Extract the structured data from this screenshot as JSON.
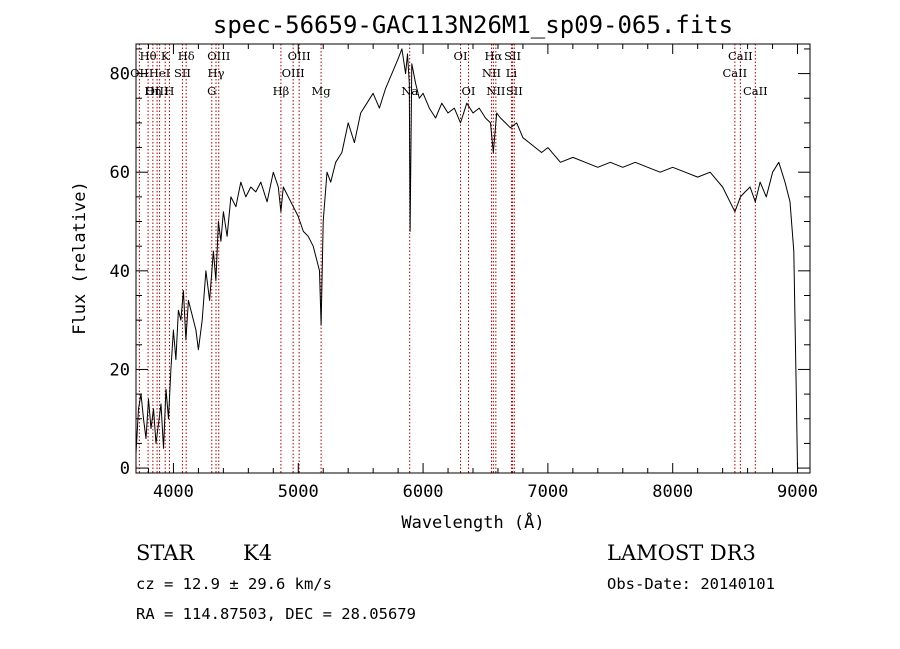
{
  "chart_data": {
    "type": "line",
    "title": "spec-56659-GAC113N26M1_sp09-065.fits",
    "xlabel": "Wavelength (Å)",
    "ylabel": "Flux (relative)",
    "xlim": [
      3700,
      9100
    ],
    "ylim": [
      -1,
      86
    ],
    "x_ticks": [
      4000,
      5000,
      6000,
      7000,
      8000,
      9000
    ],
    "y_ticks": [
      0,
      20,
      40,
      60,
      80
    ],
    "grid": false,
    "series": [
      {
        "x": [
          3700,
          3720,
          3740,
          3760,
          3780,
          3800,
          3820,
          3840,
          3860,
          3880,
          3900,
          3920,
          3940,
          3960,
          3980,
          4000,
          4020,
          4040,
          4060,
          4080,
          4100,
          4120,
          4150,
          4180,
          4200,
          4230,
          4260,
          4290,
          4320,
          4340,
          4360,
          4380,
          4400,
          4430,
          4460,
          4500,
          4540,
          4580,
          4620,
          4660,
          4700,
          4750,
          4800,
          4840,
          4861,
          4880,
          4920,
          4960,
          5000,
          5040,
          5080,
          5120,
          5150,
          5170,
          5183,
          5200,
          5230,
          5260,
          5300,
          5350,
          5400,
          5450,
          5500,
          5550,
          5600,
          5650,
          5700,
          5750,
          5800,
          5830,
          5860,
          5875,
          5890,
          5896,
          5910,
          5940,
          5970,
          6000,
          6050,
          6100,
          6150,
          6200,
          6250,
          6300,
          6350,
          6400,
          6450,
          6500,
          6540,
          6563,
          6590,
          6620,
          6660,
          6700,
          6750,
          6800,
          6850,
          6900,
          6950,
          7000,
          7100,
          7200,
          7300,
          7400,
          7500,
          7600,
          7700,
          7800,
          7900,
          8000,
          8100,
          8200,
          8300,
          8400,
          8498,
          8542,
          8580,
          8620,
          8662,
          8700,
          8750,
          8800,
          8850,
          8900,
          8940,
          8970,
          8990,
          9000,
          9010
        ],
        "y": [
          3,
          12,
          15,
          10,
          6,
          14,
          8,
          12,
          5,
          9,
          13,
          4,
          16,
          10,
          20,
          28,
          22,
          32,
          30,
          36,
          26,
          34,
          31,
          28,
          24,
          30,
          40,
          34,
          44,
          38,
          50,
          46,
          52,
          47,
          55,
          53,
          58,
          55,
          57,
          56,
          58,
          54,
          60,
          57,
          52,
          57,
          55,
          53,
          51,
          48,
          47,
          45,
          42,
          40,
          29,
          50,
          60,
          58,
          62,
          64,
          70,
          66,
          72,
          74,
          76,
          73,
          77,
          80,
          83,
          85,
          80,
          84,
          78,
          48,
          82,
          78,
          75,
          76,
          73,
          71,
          74,
          72,
          73,
          70,
          74,
          72,
          73,
          71,
          70,
          64,
          72,
          71,
          70,
          69,
          70,
          67,
          66,
          65,
          64,
          65,
          62,
          63,
          62,
          61,
          62,
          61,
          62,
          61,
          60,
          61,
          60,
          59,
          60,
          57,
          52,
          55,
          56,
          57,
          54,
          58,
          55,
          60,
          62,
          58,
          54,
          44,
          15,
          0,
          0
        ]
      }
    ],
    "line_markers": [
      {
        "label": "Hθ",
        "wave": 3797,
        "row": 0
      },
      {
        "label": "OII",
        "wave": 3727,
        "row": 1
      },
      {
        "label": "OIII",
        "wave": 3869,
        "row": 2
      },
      {
        "label": "K",
        "wave": 3934,
        "row": 0
      },
      {
        "label": "HeI",
        "wave": 3889,
        "row": 1
      },
      {
        "label": "Hη",
        "wave": 3835,
        "row": 2
      },
      {
        "label": "Hδ",
        "wave": 4102,
        "row": 0
      },
      {
        "label": "SII",
        "wave": 4072,
        "row": 1
      },
      {
        "label": "H",
        "wave": 3968,
        "row": 2
      },
      {
        "label": "OIII",
        "wave": 4363,
        "row": 0
      },
      {
        "label": "Hγ",
        "wave": 4341,
        "row": 1
      },
      {
        "label": "G",
        "wave": 4307,
        "row": 2
      },
      {
        "label": "OIII",
        "wave": 5007,
        "row": 0
      },
      {
        "label": "OIII",
        "wave": 4959,
        "row": 1
      },
      {
        "label": "Hβ",
        "wave": 4861,
        "row": 2
      },
      {
        "label": "Mg",
        "wave": 5183,
        "row": 2
      },
      {
        "label": "Na",
        "wave": 5893,
        "row": 2
      },
      {
        "label": "OI",
        "wave": 6300,
        "row": 0
      },
      {
        "label": "OI",
        "wave": 6364,
        "row": 2
      },
      {
        "label": "Hα",
        "wave": 6563,
        "row": 0
      },
      {
        "label": "SII",
        "wave": 6717,
        "row": 0
      },
      {
        "label": "NII",
        "wave": 6548,
        "row": 1
      },
      {
        "label": "Li",
        "wave": 6708,
        "row": 1
      },
      {
        "label": "NII",
        "wave": 6583,
        "row": 2
      },
      {
        "label": "SII",
        "wave": 6731,
        "row": 2
      },
      {
        "label": "CaII",
        "wave": 8542,
        "row": 0
      },
      {
        "label": "CaII",
        "wave": 8498,
        "row": 1
      },
      {
        "label": "CaII",
        "wave": 8662,
        "row": 2
      }
    ]
  },
  "footer": {
    "object_class": "STAR",
    "subclass": "K4",
    "survey": "LAMOST DR3",
    "cz": "cz = 12.9 ± 29.6 km/s",
    "obs_date": "Obs-Date: 20140101",
    "coords": "RA = 114.87503, DEC =  28.05679"
  },
  "colors": {
    "spectrum": "#000000",
    "marker": "#aa0000",
    "axes": "#000000"
  }
}
